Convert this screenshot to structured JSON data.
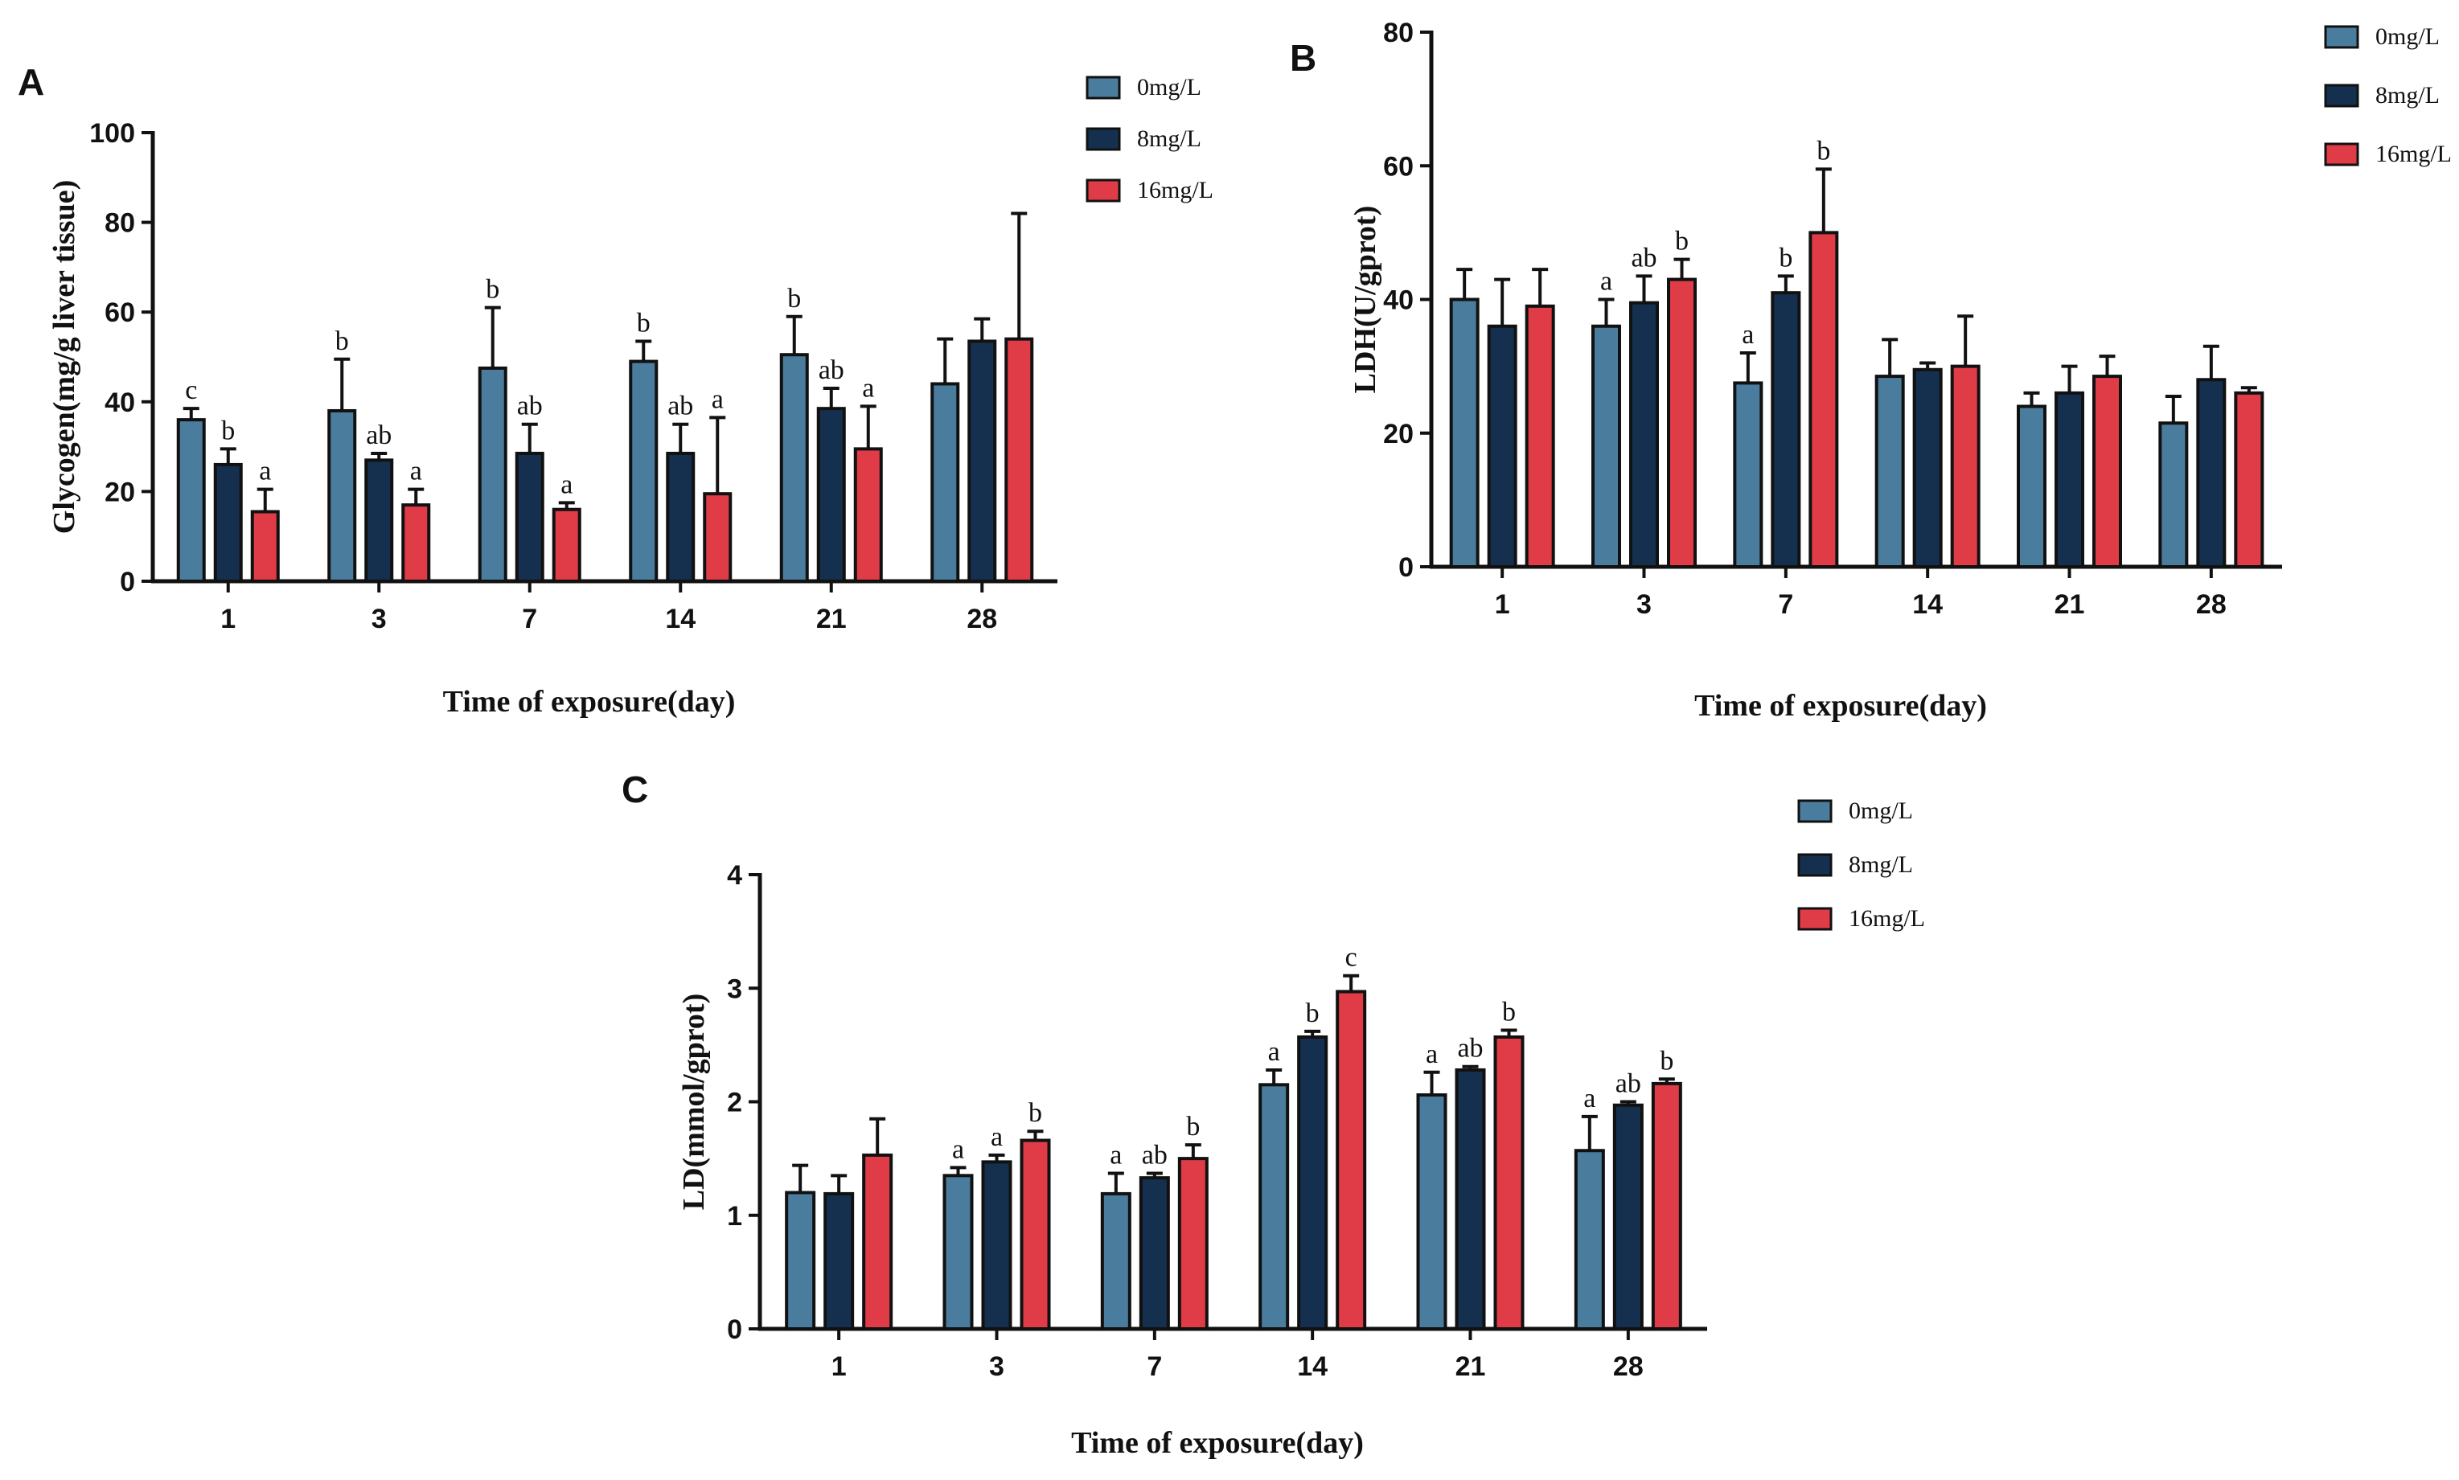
{
  "colors": {
    "s0": "#4a7d9d",
    "s1": "#15304e",
    "s2": "#e03c47",
    "outline": "#111111"
  },
  "chart_data": [
    {
      "panel": "A",
      "type": "bar",
      "title": "",
      "xlabel": "Time of exposure(day)",
      "ylabel": "Glycogen(mg/g liver tissue)",
      "ylim": [
        0,
        100
      ],
      "yticks": [
        "0",
        "20",
        "40",
        "60",
        "80",
        "100"
      ],
      "categories": [
        "1",
        "3",
        "7",
        "14",
        "21",
        "28"
      ],
      "series": [
        {
          "name": "0mg/L",
          "values": [
            36,
            38,
            47.5,
            49,
            50.5,
            44
          ],
          "errors": [
            2.5,
            11.5,
            13.5,
            4.5,
            8.5,
            10
          ],
          "labels": [
            "c",
            "b",
            "b",
            "b",
            "b",
            ""
          ]
        },
        {
          "name": "8mg/L",
          "values": [
            26,
            27,
            28.5,
            28.5,
            38.5,
            53.5
          ],
          "errors": [
            3.5,
            1.5,
            6.5,
            6.5,
            4.5,
            5
          ],
          "labels": [
            "b",
            "ab",
            "ab",
            "ab",
            "ab",
            ""
          ]
        },
        {
          "name": "16mg/L",
          "values": [
            15.5,
            17,
            16,
            19.5,
            29.5,
            54
          ],
          "errors": [
            5,
            3.5,
            1.5,
            17,
            9.5,
            28
          ],
          "labels": [
            "a",
            "a",
            "a",
            "a",
            "a",
            ""
          ]
        }
      ],
      "legend": "top-right"
    },
    {
      "panel": "B",
      "type": "bar",
      "title": "",
      "xlabel": "Time of exposure(day)",
      "ylabel": "LDH(U/gprot)",
      "ylim": [
        0,
        80
      ],
      "yticks": [
        "0",
        "20",
        "40",
        "60",
        "80"
      ],
      "categories": [
        "1",
        "3",
        "7",
        "14",
        "21",
        "28"
      ],
      "series": [
        {
          "name": "0mg/L",
          "values": [
            40,
            36,
            27.5,
            28.5,
            24,
            21.5
          ],
          "errors": [
            4.5,
            4,
            4.5,
            5.5,
            2,
            4
          ],
          "labels": [
            "",
            "a",
            "a",
            "",
            "",
            ""
          ]
        },
        {
          "name": "8mg/L",
          "values": [
            36,
            39.5,
            41,
            29.5,
            26,
            28
          ],
          "errors": [
            7,
            4,
            2.5,
            1,
            4,
            5
          ],
          "labels": [
            "",
            "ab",
            "b",
            "",
            "",
            ""
          ]
        },
        {
          "name": "16mg/L",
          "values": [
            39,
            43,
            50,
            30,
            28.5,
            26
          ],
          "errors": [
            5.5,
            3,
            9.5,
            7.5,
            3,
            0.8
          ],
          "labels": [
            "",
            "b",
            "b",
            "",
            "",
            ""
          ]
        }
      ],
      "legend": "top-right"
    },
    {
      "panel": "C",
      "type": "bar",
      "title": "",
      "xlabel": "Time of exposure(day)",
      "ylabel": "LD(mmol/gprot)",
      "ylim": [
        0,
        4
      ],
      "yticks": [
        "0",
        "1",
        "2",
        "3",
        "4"
      ],
      "categories": [
        "1",
        "3",
        "7",
        "14",
        "21",
        "28"
      ],
      "series": [
        {
          "name": "0mg/L",
          "values": [
            1.2,
            1.35,
            1.19,
            2.15,
            2.06,
            1.57
          ],
          "errors": [
            0.24,
            0.07,
            0.18,
            0.13,
            0.2,
            0.3
          ],
          "labels": [
            "",
            "a",
            "a",
            "a",
            "a",
            "a"
          ]
        },
        {
          "name": "8mg/L",
          "values": [
            1.19,
            1.47,
            1.33,
            2.57,
            2.28,
            1.97
          ],
          "errors": [
            0.16,
            0.06,
            0.04,
            0.05,
            0.03,
            0.03
          ],
          "labels": [
            "",
            "a",
            "ab",
            "b",
            "ab",
            "ab"
          ]
        },
        {
          "name": "16mg/L",
          "values": [
            1.53,
            1.66,
            1.5,
            2.97,
            2.57,
            2.16
          ],
          "errors": [
            0.32,
            0.08,
            0.12,
            0.14,
            0.06,
            0.04
          ],
          "labels": [
            "",
            "b",
            "b",
            "c",
            "b",
            "b"
          ]
        }
      ],
      "legend": "top-right"
    }
  ]
}
